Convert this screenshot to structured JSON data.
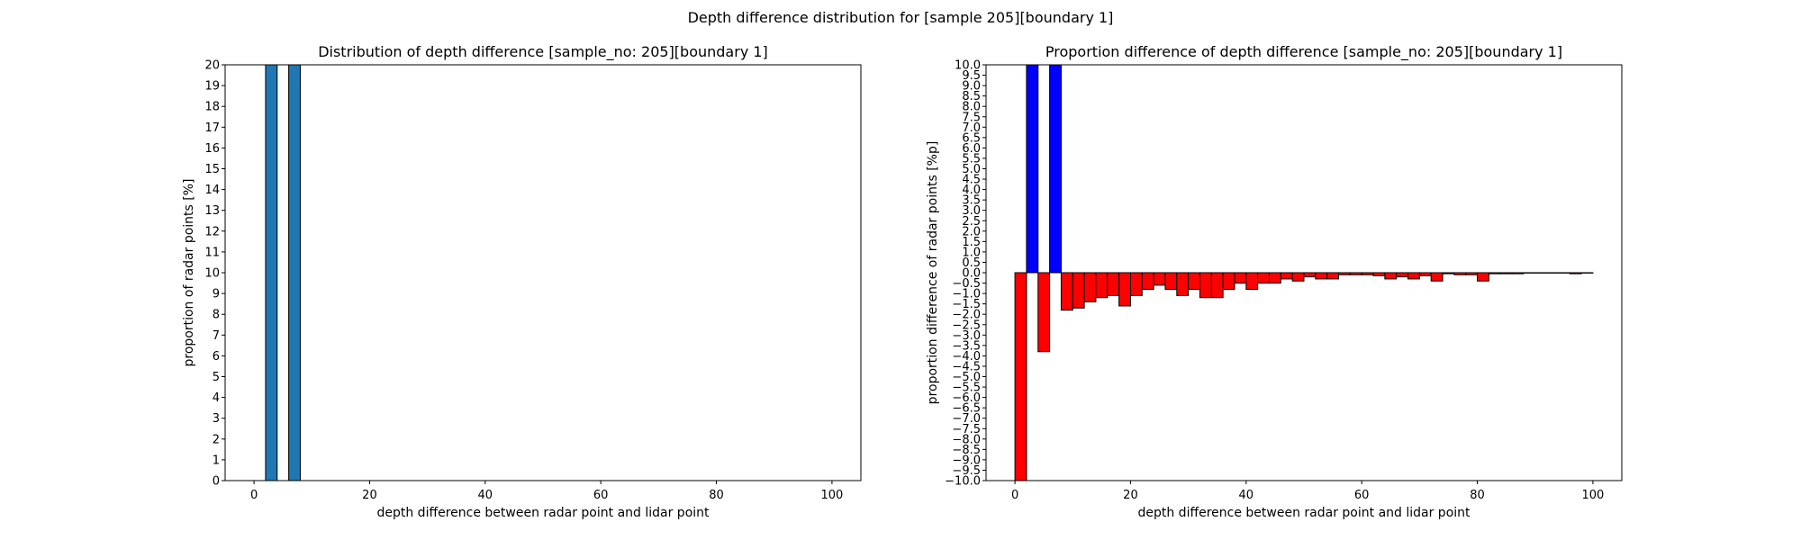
{
  "figure": {
    "suptitle": "Depth difference distribution for [sample 205][boundary 1]"
  },
  "chart_data": [
    {
      "type": "bar",
      "title": "Distribution of depth difference [sample_no: 205][boundary 1]",
      "xlabel": "depth difference between radar point and lidar point",
      "ylabel": "proportion of radar points [%]",
      "xlim": [
        -5,
        105
      ],
      "ylim": [
        0,
        20
      ],
      "xticks": [
        0,
        20,
        40,
        60,
        80,
        100
      ],
      "yticks": [
        0,
        1,
        2,
        3,
        4,
        5,
        6,
        7,
        8,
        9,
        10,
        11,
        12,
        13,
        14,
        15,
        16,
        17,
        18,
        19,
        20
      ],
      "bar_width": 2,
      "bar_color": "#1f77b4",
      "edge_color": "#000000",
      "x": [
        3,
        7
      ],
      "values": [
        20,
        20
      ]
    },
    {
      "type": "bar",
      "title": "Proportion difference of depth difference [sample_no: 205][boundary 1]",
      "xlabel": "depth difference between radar point and lidar point",
      "ylabel": "proportion difference of radar points [%p]",
      "xlim": [
        -5,
        105
      ],
      "ylim": [
        -10,
        10
      ],
      "xticks": [
        0,
        20,
        40,
        60,
        80,
        100
      ],
      "yticks": [
        -10.0,
        -9.5,
        -9.0,
        -8.5,
        -8.0,
        -7.5,
        -7.0,
        -6.5,
        -6.0,
        -5.5,
        -5.0,
        -4.5,
        -4.0,
        -3.5,
        -3.0,
        -2.5,
        -2.0,
        -1.5,
        -1.0,
        -0.5,
        0.0,
        0.5,
        1.0,
        1.5,
        2.0,
        2.5,
        3.0,
        3.5,
        4.0,
        4.5,
        5.0,
        5.5,
        6.0,
        6.5,
        7.0,
        7.5,
        8.0,
        8.5,
        9.0,
        9.5,
        10.0
      ],
      "bar_width": 2,
      "positive_color": "#0000ff",
      "negative_color": "#ff0000",
      "edge_color": "#000000",
      "x": [
        1,
        3,
        5,
        7,
        9,
        11,
        13,
        15,
        17,
        19,
        21,
        23,
        25,
        27,
        29,
        31,
        33,
        35,
        37,
        39,
        41,
        43,
        45,
        47,
        49,
        51,
        53,
        55,
        57,
        59,
        61,
        63,
        65,
        67,
        69,
        71,
        73,
        75,
        77,
        79,
        81,
        83,
        85,
        87,
        89,
        91,
        93,
        95,
        97,
        99
      ],
      "values": [
        -10.0,
        10.0,
        -3.8,
        10.0,
        -1.8,
        -1.7,
        -1.4,
        -1.2,
        -1.1,
        -1.6,
        -1.1,
        -0.8,
        -0.6,
        -0.8,
        -1.1,
        -0.8,
        -1.2,
        -1.2,
        -0.8,
        -0.5,
        -0.8,
        -0.5,
        -0.5,
        -0.3,
        -0.4,
        -0.2,
        -0.3,
        -0.3,
        -0.1,
        -0.1,
        -0.1,
        -0.15,
        -0.3,
        -0.2,
        -0.3,
        -0.15,
        -0.4,
        -0.05,
        -0.1,
        -0.1,
        -0.4,
        -0.05,
        -0.05,
        -0.05,
        -0.02,
        -0.02,
        -0.02,
        -0.02,
        -0.05,
        -0.02
      ]
    }
  ]
}
